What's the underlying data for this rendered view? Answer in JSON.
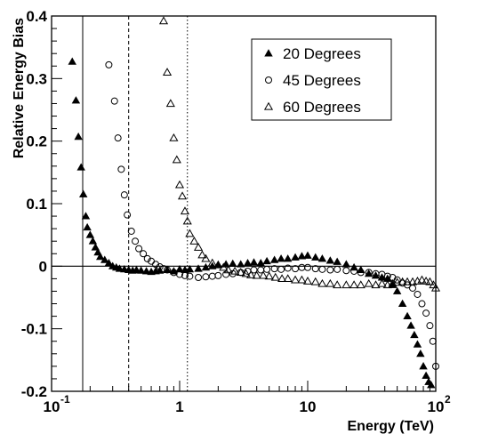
{
  "chart_data": {
    "type": "scatter",
    "title": "",
    "xlabel": "Energy (TeV)",
    "ylabel": "Relative Energy Bias",
    "xscale": "log",
    "xlim": [
      0.1,
      100
    ],
    "ylim": [
      -0.2,
      0.4
    ],
    "x_tick_labels": [
      {
        "value": 0.1,
        "base": "10",
        "exp": "-1"
      },
      {
        "value": 1,
        "base": "1",
        "exp": ""
      },
      {
        "value": 10,
        "base": "10",
        "exp": ""
      },
      {
        "value": 100,
        "base": "10",
        "exp": "2"
      }
    ],
    "y_ticks": [
      {
        "value": 0.4,
        "label": "0.4"
      },
      {
        "value": 0.3,
        "label": "0.3"
      },
      {
        "value": 0.2,
        "label": "0.2"
      },
      {
        "value": 0.1,
        "label": "0.1"
      },
      {
        "value": 0,
        "label": "0"
      },
      {
        "value": -0.1,
        "label": "-0.1"
      },
      {
        "value": -0.2,
        "label": "-0.2"
      }
    ],
    "grid": false,
    "legend_position": "top-right",
    "reference_lines": {
      "horizontal": [
        {
          "y": 0,
          "style": "solid"
        }
      ],
      "vertical": [
        {
          "x": 0.175,
          "style": "solid"
        },
        {
          "x": 0.4,
          "style": "dashed"
        },
        {
          "x": 1.15,
          "style": "dotted"
        }
      ]
    },
    "series": [
      {
        "name": "20 Degrees",
        "marker": "triangle-filled",
        "x": [
          0.145,
          0.155,
          0.162,
          0.17,
          0.177,
          0.185,
          0.19,
          0.2,
          0.21,
          0.22,
          0.23,
          0.24,
          0.26,
          0.28,
          0.3,
          0.32,
          0.34,
          0.37,
          0.4,
          0.43,
          0.46,
          0.5,
          0.55,
          0.6,
          0.65,
          0.7,
          0.8,
          0.9,
          1.0,
          1.1,
          1.2,
          1.4,
          1.6,
          1.8,
          2.0,
          2.3,
          2.6,
          3.0,
          3.4,
          3.8,
          4.3,
          4.8,
          5.5,
          6.2,
          7.0,
          8.0,
          9.0,
          10.0,
          11.5,
          13,
          15,
          17,
          20,
          23,
          26,
          30,
          34,
          38,
          42,
          46,
          50,
          55,
          60,
          64,
          68,
          72,
          76,
          80,
          84,
          88,
          92
        ],
        "y": [
          0.327,
          0.265,
          0.207,
          0.158,
          0.115,
          0.08,
          0.062,
          0.05,
          0.04,
          0.03,
          0.022,
          0.015,
          0.01,
          0.005,
          0.0,
          -0.002,
          -0.004,
          -0.005,
          -0.006,
          -0.007,
          -0.006,
          -0.007,
          -0.008,
          -0.009,
          -0.008,
          -0.007,
          -0.006,
          -0.008,
          -0.005,
          -0.006,
          -0.005,
          -0.004,
          -0.002,
          0.0,
          0.002,
          0.003,
          0.004,
          0.003,
          0.005,
          0.006,
          0.005,
          0.008,
          0.01,
          0.012,
          0.012,
          0.014,
          0.016,
          0.017,
          0.014,
          0.012,
          0.009,
          0.007,
          0.003,
          -0.002,
          -0.006,
          -0.012,
          -0.015,
          -0.018,
          -0.02,
          -0.03,
          -0.04,
          -0.06,
          -0.08,
          -0.095,
          -0.11,
          -0.125,
          -0.14,
          -0.16,
          -0.175,
          -0.185,
          -0.19
        ]
      },
      {
        "name": "45 Degrees",
        "marker": "circle-open",
        "x": [
          0.28,
          0.31,
          0.33,
          0.35,
          0.37,
          0.39,
          0.42,
          0.45,
          0.48,
          0.52,
          0.56,
          0.6,
          0.65,
          0.7,
          0.75,
          0.8,
          0.9,
          1.0,
          1.1,
          1.2,
          1.4,
          1.6,
          1.8,
          2.0,
          2.3,
          2.6,
          3.0,
          3.4,
          3.8,
          4.3,
          4.8,
          5.5,
          6.2,
          7.0,
          8.0,
          9.0,
          10,
          11.5,
          13,
          15,
          17,
          20,
          23,
          26,
          30,
          34,
          38,
          42,
          46,
          50,
          55,
          60,
          66,
          72,
          78,
          84,
          90,
          95,
          100
        ],
        "y": [
          0.322,
          0.264,
          0.205,
          0.155,
          0.114,
          0.082,
          0.056,
          0.04,
          0.028,
          0.02,
          0.012,
          0.008,
          0.003,
          -0.001,
          -0.004,
          -0.006,
          -0.01,
          -0.013,
          -0.015,
          -0.016,
          -0.018,
          -0.017,
          -0.016,
          -0.015,
          -0.013,
          -0.012,
          -0.01,
          -0.008,
          -0.006,
          -0.006,
          -0.005,
          -0.004,
          -0.005,
          -0.003,
          -0.004,
          -0.002,
          -0.002,
          -0.004,
          -0.005,
          -0.006,
          -0.005,
          -0.007,
          -0.008,
          -0.01,
          -0.01,
          -0.012,
          -0.013,
          -0.016,
          -0.018,
          -0.022,
          -0.027,
          -0.03,
          -0.035,
          -0.045,
          -0.06,
          -0.075,
          -0.095,
          -0.12,
          -0.16
        ]
      },
      {
        "name": "60 Degrees",
        "marker": "triangle-open",
        "x": [
          0.75,
          0.8,
          0.85,
          0.9,
          0.95,
          1.0,
          1.05,
          1.1,
          1.15,
          1.2,
          1.3,
          1.4,
          1.5,
          1.6,
          1.8,
          2.0,
          2.2,
          2.4,
          2.7,
          3.0,
          3.3,
          3.6,
          4.0,
          4.5,
          5.0,
          5.6,
          6.3,
          7.0,
          8.0,
          9.0,
          10,
          11.5,
          13,
          15,
          17,
          20,
          23,
          26,
          30,
          34,
          38,
          42,
          46,
          50,
          55,
          60,
          66,
          72,
          78,
          84,
          90,
          96,
          100
        ],
        "y": [
          0.392,
          0.31,
          0.26,
          0.205,
          0.17,
          0.13,
          0.112,
          0.088,
          0.072,
          0.052,
          0.04,
          0.03,
          0.018,
          0.012,
          0.005,
          0.002,
          -0.002,
          -0.006,
          -0.008,
          -0.01,
          -0.012,
          -0.014,
          -0.015,
          -0.015,
          -0.016,
          -0.018,
          -0.02,
          -0.02,
          -0.022,
          -0.022,
          -0.024,
          -0.025,
          -0.028,
          -0.028,
          -0.03,
          -0.03,
          -0.03,
          -0.03,
          -0.028,
          -0.03,
          -0.028,
          -0.03,
          -0.028,
          -0.026,
          -0.025,
          -0.025,
          -0.025,
          -0.024,
          -0.022,
          -0.024,
          -0.025,
          -0.03,
          -0.035
        ]
      }
    ]
  }
}
